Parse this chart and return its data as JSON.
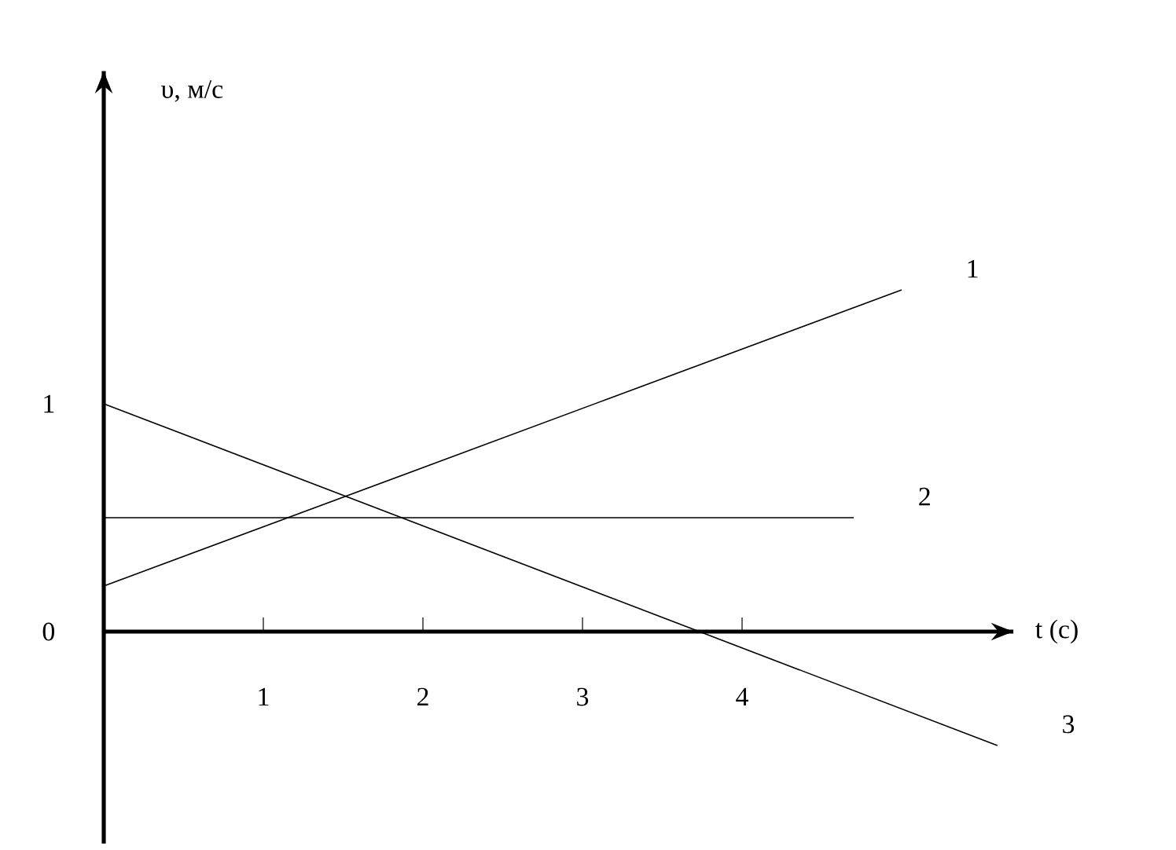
{
  "chart_data": {
    "type": "line",
    "xlabel": "t (c)",
    "ylabel": "υ, м/с",
    "series": [
      {
        "name": "1",
        "color": "#000000",
        "x": [
          0,
          5
        ],
        "values": [
          0.2,
          1.5
        ]
      },
      {
        "name": "2",
        "color": "#000000",
        "x": [
          0,
          4.7
        ],
        "values": [
          0.5,
          0.5
        ]
      },
      {
        "name": "3",
        "color": "#000000",
        "x": [
          0,
          5.6
        ],
        "values": [
          1,
          -0.5
        ]
      }
    ],
    "xlim": [
      0,
      5.7
    ],
    "ylim": [
      -0.93,
      2.46
    ],
    "xticks": [
      1,
      2,
      3,
      4
    ],
    "yticks": [
      0,
      1
    ],
    "marker": "none",
    "line_style": "solid"
  }
}
